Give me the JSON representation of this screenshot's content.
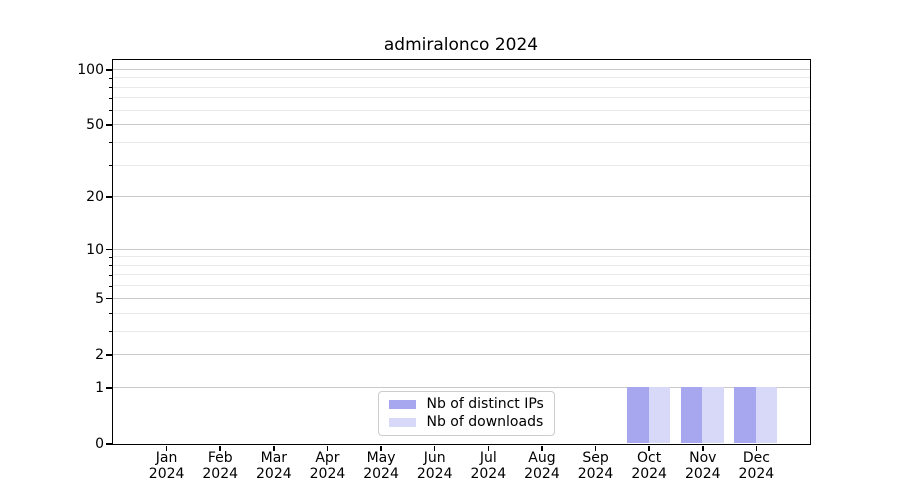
{
  "chart_data": {
    "type": "bar",
    "title": "admiralonco 2024",
    "x_year": "2024",
    "categories": [
      "Jan",
      "Feb",
      "Mar",
      "Apr",
      "May",
      "Jun",
      "Jul",
      "Aug",
      "Sep",
      "Oct",
      "Nov",
      "Dec"
    ],
    "series": [
      {
        "name": "Nb of distinct IPs",
        "key": "distinct-ips",
        "color": "#a7a7f0",
        "values": [
          0,
          0,
          0,
          0,
          0,
          0,
          0,
          0,
          0,
          1,
          1,
          1
        ]
      },
      {
        "name": "Nb of downloads",
        "key": "downloads",
        "color": "#d8d8f8",
        "values": [
          0,
          0,
          0,
          0,
          0,
          0,
          0,
          0,
          0,
          1,
          1,
          1
        ]
      }
    ],
    "yscale": "log1p",
    "ylim": [
      0,
      113
    ],
    "y_major_ticks": [
      100,
      50,
      20,
      10,
      5,
      2,
      1,
      0
    ],
    "y_minor_gridlines": [
      90,
      80,
      70,
      60,
      40,
      30,
      9,
      8,
      7,
      6,
      4,
      3
    ],
    "bar_width_fraction": 0.4,
    "grid": "horizontal",
    "legend_position": "lower center"
  },
  "colors": {
    "background": "#ffffff",
    "axis": "#000000",
    "grid_major": "#c9c9c9",
    "grid_minor": "#e9e9e9",
    "legend_border": "#cccccc",
    "bar_distinct_ips": "#a7a7f0",
    "bar_downloads": "#d8d8f8"
  }
}
